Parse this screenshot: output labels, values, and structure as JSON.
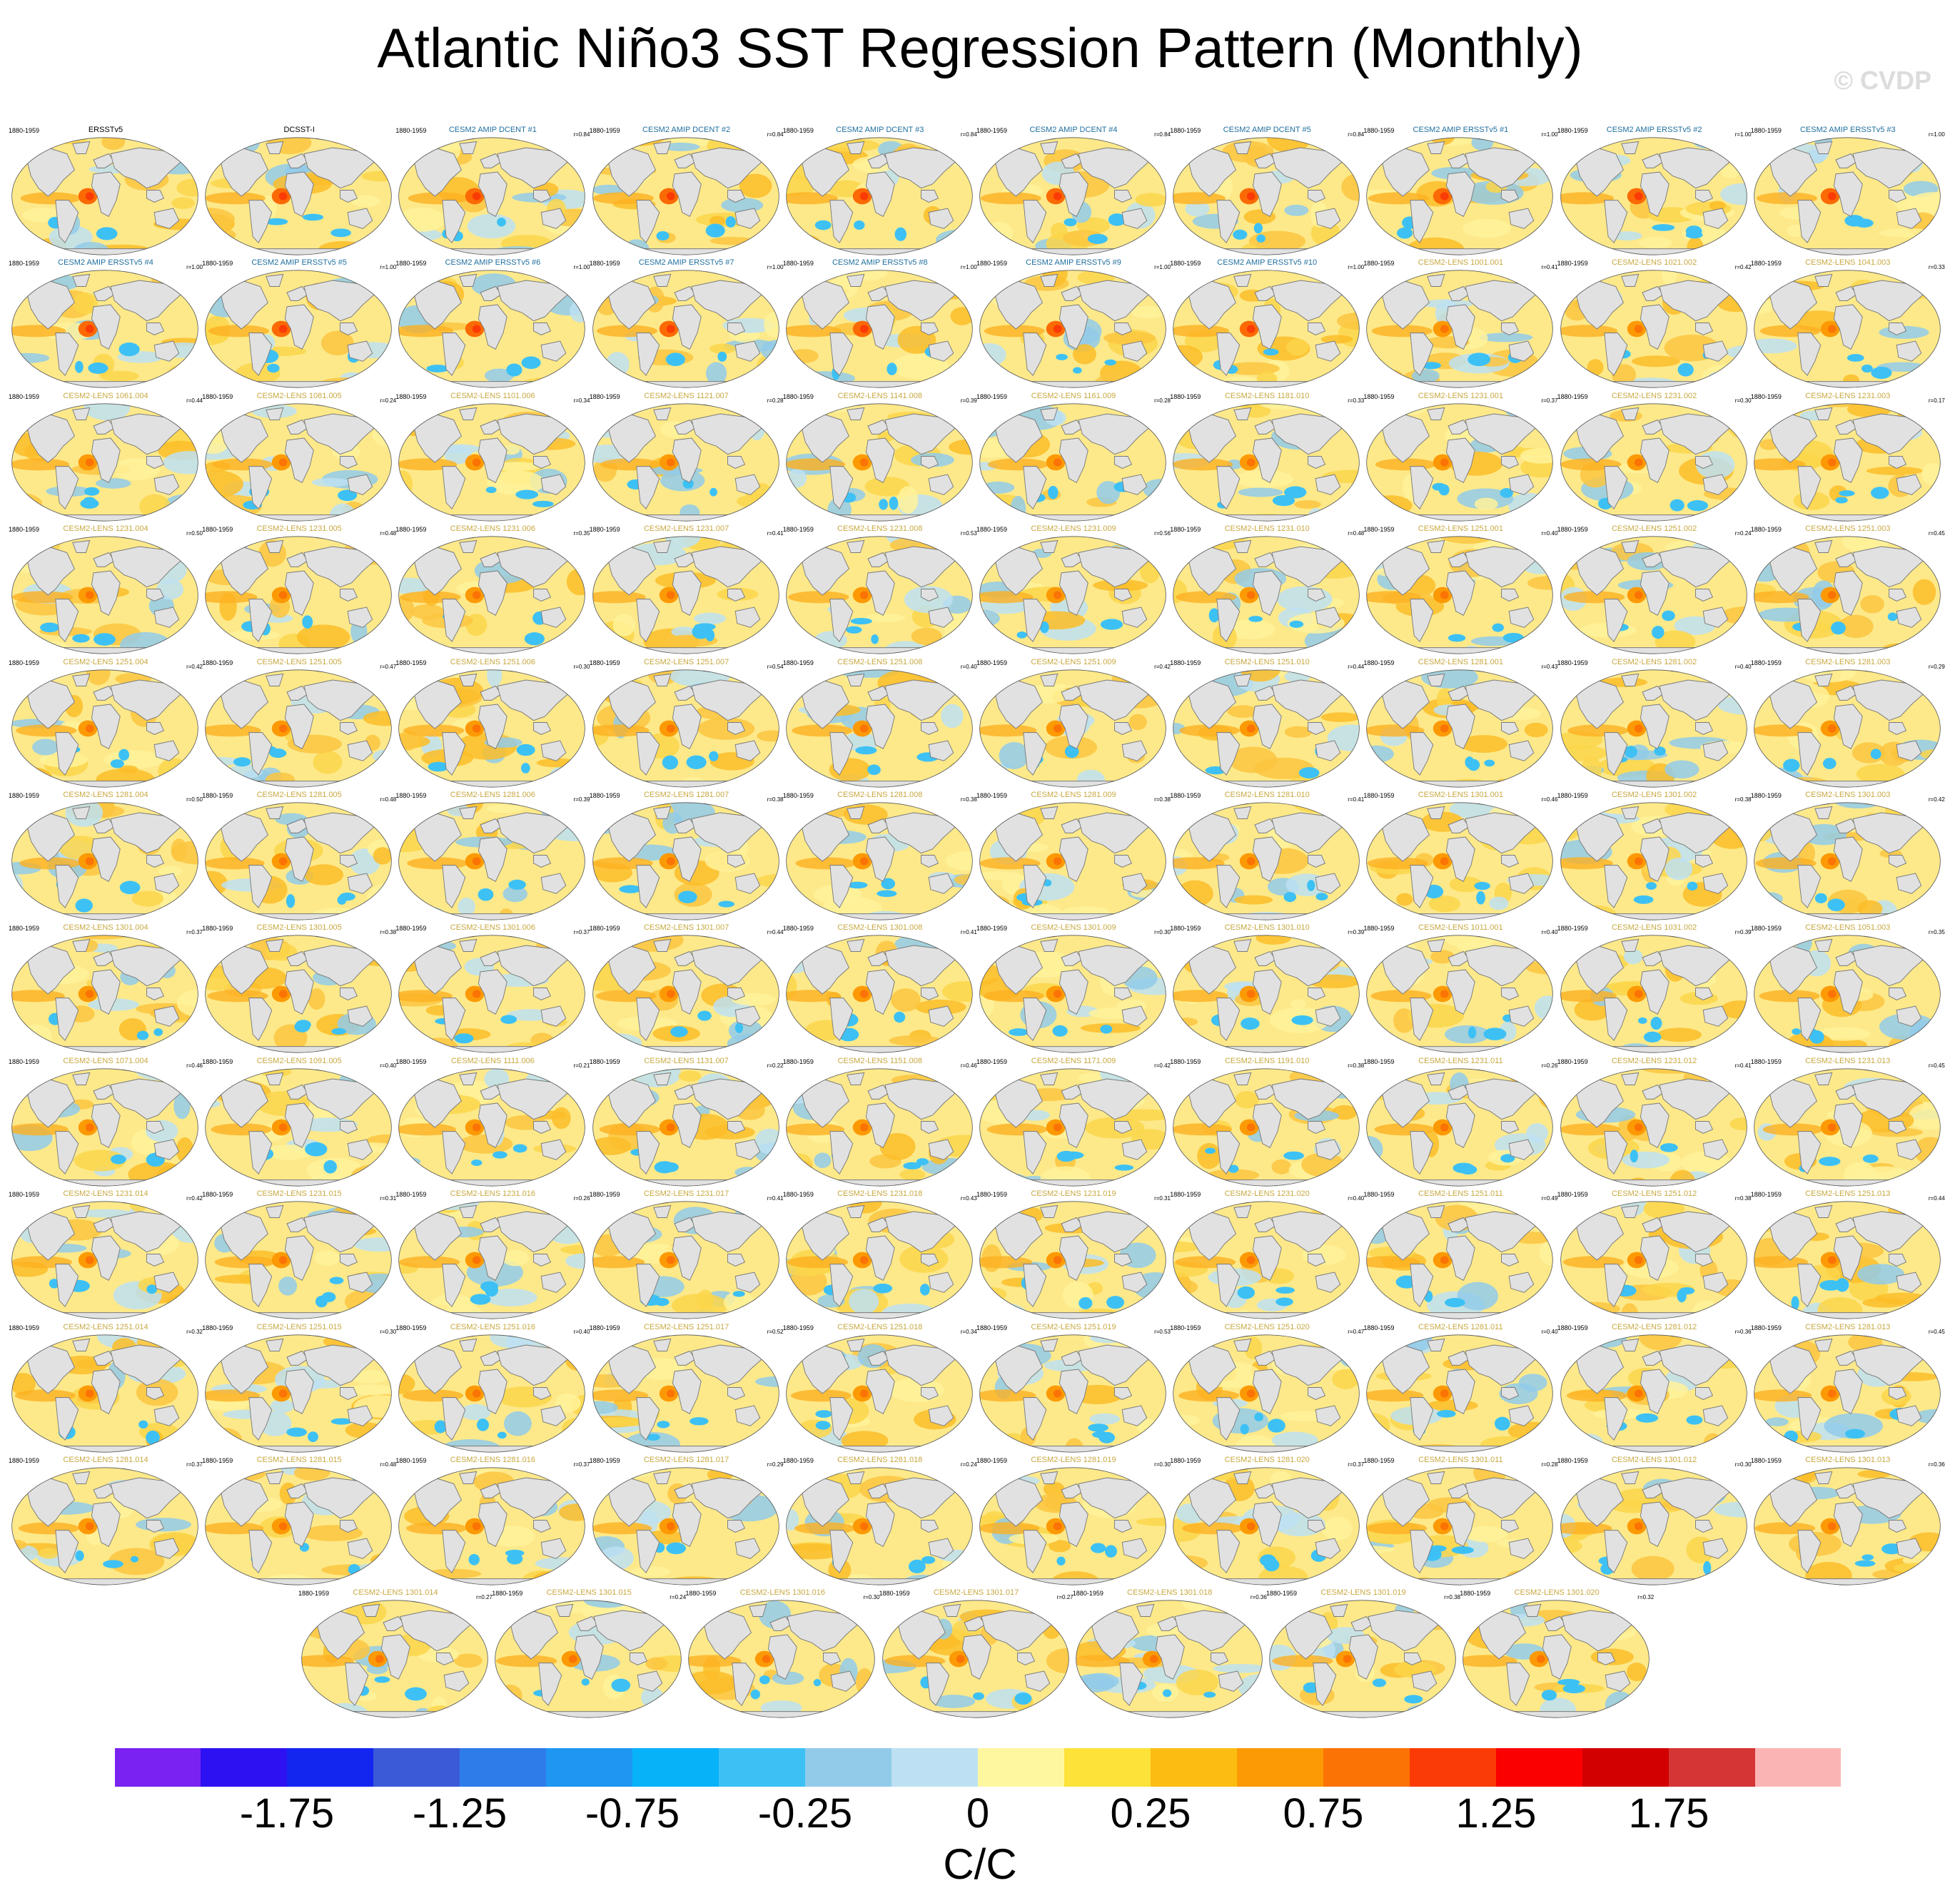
{
  "title": "Atlantic Niño3 SST Regression Pattern (Monthly)",
  "watermark": "© CVDP",
  "chart_data": {
    "type": "heatmap",
    "title": "Atlantic Niño3 SST Regression Pattern (Monthly)",
    "units": "C/C",
    "period": "1880-1959",
    "colorbar": {
      "tick_labels": [
        "-1.75",
        "-1.25",
        "-0.75",
        "-0.25",
        "0",
        "0.25",
        "0.75",
        "1.25",
        "1.75"
      ],
      "colors": [
        "#7a22f2",
        "#2d11f2",
        "#1226f0",
        "#3a5ad8",
        "#2e7bea",
        "#1e96f2",
        "#08b2f9",
        "#3dc1f5",
        "#92cbea",
        "#bde1f2",
        "#fff7a0",
        "#fde23a",
        "#fcbc12",
        "#fc9a05",
        "#fb7305",
        "#fb3b06",
        "#fb0000",
        "#d20000",
        "#d53535",
        "#fbb4b4"
      ]
    },
    "panels": [
      {
        "title": "ERSSTv5",
        "period": "1880-1959",
        "r": ""
      },
      {
        "title": "DCSST-I",
        "period": "",
        "r": ""
      },
      {
        "title": "CESM2 AMIP DCENT #1",
        "period": "1880-1959",
        "r": "r=0.84"
      },
      {
        "title": "CESM2 AMIP DCENT #2",
        "period": "1880-1959",
        "r": "r=0.84"
      },
      {
        "title": "CESM2 AMIP DCENT #3",
        "period": "1880-1959",
        "r": "r=0.84"
      },
      {
        "title": "CESM2 AMIP DCENT #4",
        "period": "1880-1959",
        "r": "r=0.84"
      },
      {
        "title": "CESM2 AMIP DCENT #5",
        "period": "1880-1959",
        "r": "r=0.84"
      },
      {
        "title": "CESM2 AMIP ERSSTv5 #1",
        "period": "1880-1959",
        "r": "r=1.00"
      },
      {
        "title": "CESM2 AMIP ERSSTv5 #2",
        "period": "1880-1959",
        "r": "r=1.00"
      },
      {
        "title": "CESM2 AMIP ERSSTv5 #3",
        "period": "1880-1959",
        "r": "r=1.00"
      },
      {
        "title": "CESM2 AMIP ERSSTv5 #4",
        "period": "1880-1959",
        "r": "r=1.00"
      },
      {
        "title": "CESM2 AMIP ERSSTv5 #5",
        "period": "1880-1959",
        "r": "r=1.00"
      },
      {
        "title": "CESM2 AMIP ERSSTv5 #6",
        "period": "1880-1959",
        "r": "r=1.00"
      },
      {
        "title": "CESM2 AMIP ERSSTv5 #7",
        "period": "1880-1959",
        "r": "r=1.00"
      },
      {
        "title": "CESM2 AMIP ERSSTv5 #8",
        "period": "1880-1959",
        "r": "r=1.00"
      },
      {
        "title": "CESM2 AMIP ERSSTv5 #9",
        "period": "1880-1959",
        "r": "r=1.00"
      },
      {
        "title": "CESM2 AMIP ERSSTv5 #10",
        "period": "1880-1959",
        "r": "r=1.00"
      },
      {
        "title": "CESM2-LENS 1001.001",
        "period": "1880-1959",
        "r": "r=0.41"
      },
      {
        "title": "CESM2-LENS 1021.002",
        "period": "1880-1959",
        "r": "r=0.42"
      },
      {
        "title": "CESM2-LENS 1041.003",
        "period": "1880-1959",
        "r": "r=0.33"
      },
      {
        "title": "CESM2-LENS 1061.004",
        "period": "1880-1959",
        "r": "r=0.44"
      },
      {
        "title": "CESM2-LENS 1081.005",
        "period": "1880-1959",
        "r": "r=0.24"
      },
      {
        "title": "CESM2-LENS 1101.006",
        "period": "1880-1959",
        "r": "r=0.34"
      },
      {
        "title": "CESM2-LENS 1121.007",
        "period": "1880-1959",
        "r": "r=0.28"
      },
      {
        "title": "CESM2-LENS 1141.008",
        "period": "1880-1959",
        "r": "r=0.39"
      },
      {
        "title": "CESM2-LENS 1161.009",
        "period": "1880-1959",
        "r": "r=0.28"
      },
      {
        "title": "CESM2-LENS 1181.010",
        "period": "1880-1959",
        "r": "r=0.33"
      },
      {
        "title": "CESM2-LENS 1231.001",
        "period": "1880-1959",
        "r": "r=0.37"
      },
      {
        "title": "CESM2-LENS 1231.002",
        "period": "1880-1959",
        "r": "r=0.30"
      },
      {
        "title": "CESM2-LENS 1231.003",
        "period": "1880-1959",
        "r": "r=0.17"
      },
      {
        "title": "CESM2-LENS 1231.004",
        "period": "1880-1959",
        "r": "r=0.50"
      },
      {
        "title": "CESM2-LENS 1231.005",
        "period": "1880-1959",
        "r": "r=0.48"
      },
      {
        "title": "CESM2-LENS 1231.006",
        "period": "1880-1959",
        "r": "r=0.35"
      },
      {
        "title": "CESM2-LENS 1231.007",
        "period": "1880-1959",
        "r": "r=0.41"
      },
      {
        "title": "CESM2-LENS 1231.008",
        "period": "1880-1959",
        "r": "r=0.53"
      },
      {
        "title": "CESM2-LENS 1231.009",
        "period": "1880-1959",
        "r": "r=0.56"
      },
      {
        "title": "CESM2-LENS 1231.010",
        "period": "1880-1959",
        "r": "r=0.48"
      },
      {
        "title": "CESM2-LENS 1251.001",
        "period": "1880-1959",
        "r": "r=0.40"
      },
      {
        "title": "CESM2-LENS 1251.002",
        "period": "1880-1959",
        "r": "r=0.24"
      },
      {
        "title": "CESM2-LENS 1251.003",
        "period": "1880-1959",
        "r": "r=0.45"
      },
      {
        "title": "CESM2-LENS 1251.004",
        "period": "1880-1959",
        "r": "r=0.42"
      },
      {
        "title": "CESM2-LENS 1251.005",
        "period": "1880-1959",
        "r": "r=0.47"
      },
      {
        "title": "CESM2-LENS 1251.006",
        "period": "1880-1959",
        "r": "r=0.30"
      },
      {
        "title": "CESM2-LENS 1251.007",
        "period": "1880-1959",
        "r": "r=0.54"
      },
      {
        "title": "CESM2-LENS 1251.008",
        "period": "1880-1959",
        "r": "r=0.40"
      },
      {
        "title": "CESM2-LENS 1251.009",
        "period": "1880-1959",
        "r": "r=0.42"
      },
      {
        "title": "CESM2-LENS 1251.010",
        "period": "1880-1959",
        "r": "r=0.44"
      },
      {
        "title": "CESM2-LENS 1281.001",
        "period": "1880-1959",
        "r": "r=0.43"
      },
      {
        "title": "CESM2-LENS 1281.002",
        "period": "1880-1959",
        "r": "r=0.40"
      },
      {
        "title": "CESM2-LENS 1281.003",
        "period": "1880-1959",
        "r": "r=0.29"
      },
      {
        "title": "CESM2-LENS 1281.004",
        "period": "1880-1959",
        "r": "r=0.50"
      },
      {
        "title": "CESM2-LENS 1281.005",
        "period": "1880-1959",
        "r": "r=0.48"
      },
      {
        "title": "CESM2-LENS 1281.006",
        "period": "1880-1959",
        "r": "r=0.39"
      },
      {
        "title": "CESM2-LENS 1281.007",
        "period": "1880-1959",
        "r": "r=0.38"
      },
      {
        "title": "CESM2-LENS 1281.008",
        "period": "1880-1959",
        "r": "r=0.38"
      },
      {
        "title": "CESM2-LENS 1281.009",
        "period": "1880-1959",
        "r": "r=0.38"
      },
      {
        "title": "CESM2-LENS 1281.010",
        "period": "1880-1959",
        "r": "r=0.41"
      },
      {
        "title": "CESM2-LENS 1301.001",
        "period": "1880-1959",
        "r": "r=0.46"
      },
      {
        "title": "CESM2-LENS 1301.002",
        "period": "1880-1959",
        "r": "r=0.38"
      },
      {
        "title": "CESM2-LENS 1301.003",
        "period": "1880-1959",
        "r": "r=0.42"
      },
      {
        "title": "CESM2-LENS 1301.004",
        "period": "1880-1959",
        "r": "r=0.37"
      },
      {
        "title": "CESM2-LENS 1301.005",
        "period": "1880-1959",
        "r": "r=0.38"
      },
      {
        "title": "CESM2-LENS 1301.006",
        "period": "1880-1959",
        "r": "r=0.37"
      },
      {
        "title": "CESM2-LENS 1301.007",
        "period": "1880-1959",
        "r": "r=0.44"
      },
      {
        "title": "CESM2-LENS 1301.008",
        "period": "1880-1959",
        "r": "r=0.41"
      },
      {
        "title": "CESM2-LENS 1301.009",
        "period": "1880-1959",
        "r": "r=0.30"
      },
      {
        "title": "CESM2-LENS 1301.010",
        "period": "1880-1959",
        "r": "r=0.39"
      },
      {
        "title": "CESM2-LENS 1011.001",
        "period": "1880-1959",
        "r": "r=0.40"
      },
      {
        "title": "CESM2-LENS 1031.002",
        "period": "1880-1959",
        "r": "r=0.39"
      },
      {
        "title": "CESM2-LENS 1051.003",
        "period": "1880-1959",
        "r": "r=0.35"
      },
      {
        "title": "CESM2-LENS 1071.004",
        "period": "1880-1959",
        "r": "r=0.46"
      },
      {
        "title": "CESM2-LENS 1091.005",
        "period": "1880-1959",
        "r": "r=0.40"
      },
      {
        "title": "CESM2-LENS 1111.006",
        "period": "1880-1959",
        "r": "r=0.21"
      },
      {
        "title": "CESM2-LENS 1131.007",
        "period": "1880-1959",
        "r": "r=0.22"
      },
      {
        "title": "CESM2-LENS 1151.008",
        "period": "1880-1959",
        "r": "r=0.46"
      },
      {
        "title": "CESM2-LENS 1171.009",
        "period": "1880-1959",
        "r": "r=0.42"
      },
      {
        "title": "CESM2-LENS 1191.010",
        "period": "1880-1959",
        "r": "r=0.38"
      },
      {
        "title": "CESM2-LENS 1231.011",
        "period": "1880-1959",
        "r": "r=0.26"
      },
      {
        "title": "CESM2-LENS 1231.012",
        "period": "1880-1959",
        "r": "r=0.41"
      },
      {
        "title": "CESM2-LENS 1231.013",
        "period": "1880-1959",
        "r": "r=0.45"
      },
      {
        "title": "CESM2-LENS 1231.014",
        "period": "1880-1959",
        "r": "r=0.42"
      },
      {
        "title": "CESM2-LENS 1231.015",
        "period": "1880-1959",
        "r": "r=0.31"
      },
      {
        "title": "CESM2-LENS 1231.016",
        "period": "1880-1959",
        "r": "r=0.26"
      },
      {
        "title": "CESM2-LENS 1231.017",
        "period": "1880-1959",
        "r": "r=0.41"
      },
      {
        "title": "CESM2-LENS 1231.018",
        "period": "1880-1959",
        "r": "r=0.43"
      },
      {
        "title": "CESM2-LENS 1231.019",
        "period": "1880-1959",
        "r": "r=0.31"
      },
      {
        "title": "CESM2-LENS 1231.020",
        "period": "1880-1959",
        "r": "r=0.40"
      },
      {
        "title": "CESM2-LENS 1251.011",
        "period": "1880-1959",
        "r": "r=0.49"
      },
      {
        "title": "CESM2-LENS 1251.012",
        "period": "1880-1959",
        "r": "r=0.38"
      },
      {
        "title": "CESM2-LENS 1251.013",
        "period": "1880-1959",
        "r": "r=0.44"
      },
      {
        "title": "CESM2-LENS 1251.014",
        "period": "1880-1959",
        "r": "r=0.32"
      },
      {
        "title": "CESM2-LENS 1251.015",
        "period": "1880-1959",
        "r": "r=0.30"
      },
      {
        "title": "CESM2-LENS 1251.016",
        "period": "1880-1959",
        "r": "r=0.40"
      },
      {
        "title": "CESM2-LENS 1251.017",
        "period": "1880-1959",
        "r": "r=0.52"
      },
      {
        "title": "CESM2-LENS 1251.018",
        "period": "1880-1959",
        "r": "r=0.34"
      },
      {
        "title": "CESM2-LENS 1251.019",
        "period": "1880-1959",
        "r": "r=0.53"
      },
      {
        "title": "CESM2-LENS 1251.020",
        "period": "1880-1959",
        "r": "r=0.47"
      },
      {
        "title": "CESM2-LENS 1281.011",
        "period": "1880-1959",
        "r": "r=0.40"
      },
      {
        "title": "CESM2-LENS 1281.012",
        "period": "1880-1959",
        "r": "r=0.36"
      },
      {
        "title": "CESM2-LENS 1281.013",
        "period": "1880-1959",
        "r": "r=0.45"
      },
      {
        "title": "CESM2-LENS 1281.014",
        "period": "1880-1959",
        "r": "r=0.37"
      },
      {
        "title": "CESM2-LENS 1281.015",
        "period": "1880-1959",
        "r": "r=0.48"
      },
      {
        "title": "CESM2-LENS 1281.016",
        "period": "1880-1959",
        "r": "r=0.37"
      },
      {
        "title": "CESM2-LENS 1281.017",
        "period": "1880-1959",
        "r": "r=0.29"
      },
      {
        "title": "CESM2-LENS 1281.018",
        "period": "1880-1959",
        "r": "r=0.24"
      },
      {
        "title": "CESM2-LENS 1281.019",
        "period": "1880-1959",
        "r": "r=0.30"
      },
      {
        "title": "CESM2-LENS 1281.020",
        "period": "1880-1959",
        "r": "r=0.37"
      },
      {
        "title": "CESM2-LENS 1301.011",
        "period": "1880-1959",
        "r": "r=0.28"
      },
      {
        "title": "CESM2-LENS 1301.012",
        "period": "1880-1959",
        "r": "r=0.30"
      },
      {
        "title": "CESM2-LENS 1301.013",
        "period": "1880-1959",
        "r": "r=0.36"
      },
      {
        "title": "CESM2-LENS 1301.014",
        "period": "1880-1959",
        "r": "r=0.27"
      },
      {
        "title": "CESM2-LENS 1301.015",
        "period": "1880-1959",
        "r": "r=0.24"
      },
      {
        "title": "CESM2-LENS 1301.016",
        "period": "1880-1959",
        "r": "r=0.30"
      },
      {
        "title": "CESM2-LENS 1301.017",
        "period": "1880-1959",
        "r": "r=0.27"
      },
      {
        "title": "CESM2-LENS 1301.018",
        "period": "1880-1959",
        "r": "r=0.36"
      },
      {
        "title": "CESM2-LENS 1301.019",
        "period": "1880-1959",
        "r": "r=0.38"
      },
      {
        "title": "CESM2-LENS 1301.020",
        "period": "1880-1959",
        "r": "r=0.32"
      }
    ]
  }
}
